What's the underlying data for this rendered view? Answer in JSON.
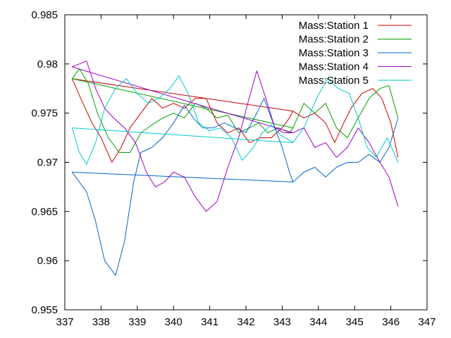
{
  "chart_data": {
    "type": "line",
    "title": "",
    "xlabel": "",
    "ylabel": "",
    "xlim": [
      337,
      347
    ],
    "ylim": [
      0.955,
      0.985
    ],
    "x_ticks": [
      "337",
      "338",
      "339",
      "340",
      "341",
      "342",
      "343",
      "344",
      "345",
      "346",
      "347"
    ],
    "y_ticks": [
      "0.955",
      "0.96",
      "0.965",
      "0.97",
      "0.975",
      "0.98",
      "0.985"
    ],
    "grid": false,
    "legend_position": "top-right",
    "series": [
      {
        "name": "Mass:Station 1",
        "color": "#cc0000",
        "points": [
          [
            337.2,
            0.9785
          ],
          [
            337.5,
            0.976
          ],
          [
            337.75,
            0.974
          ],
          [
            338.0,
            0.9725
          ],
          [
            338.3,
            0.97
          ],
          [
            338.55,
            0.9715
          ],
          [
            338.8,
            0.9735
          ],
          [
            339.1,
            0.975
          ],
          [
            339.4,
            0.9765
          ],
          [
            339.7,
            0.9755
          ],
          [
            340.0,
            0.976
          ],
          [
            340.3,
            0.9755
          ],
          [
            340.6,
            0.9765
          ],
          [
            340.9,
            0.9765
          ],
          [
            341.2,
            0.974
          ],
          [
            341.5,
            0.973
          ],
          [
            341.8,
            0.9735
          ],
          [
            342.1,
            0.972
          ],
          [
            342.4,
            0.9725
          ],
          [
            342.7,
            0.9725
          ],
          [
            343.0,
            0.9735
          ],
          [
            343.2,
            0.9745
          ],
          [
            343.3,
            0.9752
          ],
          [
            337.2,
            0.9785
          ],
          [
            343.3,
            0.9752
          ],
          [
            343.6,
            0.9745
          ],
          [
            343.9,
            0.975
          ],
          [
            344.2,
            0.974
          ],
          [
            344.45,
            0.972
          ],
          [
            344.7,
            0.974
          ],
          [
            344.9,
            0.9755
          ],
          [
            345.2,
            0.977
          ],
          [
            345.5,
            0.9775
          ],
          [
            345.75,
            0.9765
          ],
          [
            346.0,
            0.974
          ],
          [
            346.2,
            0.9705
          ]
        ]
      },
      {
        "name": "Mass:Station 2",
        "color": "#00a000",
        "points": [
          [
            337.2,
            0.9785
          ],
          [
            337.4,
            0.9795
          ],
          [
            337.65,
            0.978
          ],
          [
            337.9,
            0.975
          ],
          [
            338.2,
            0.9725
          ],
          [
            338.5,
            0.971
          ],
          [
            338.8,
            0.971
          ],
          [
            339.1,
            0.973
          ],
          [
            339.4,
            0.9738
          ],
          [
            339.7,
            0.9745
          ],
          [
            340.0,
            0.975
          ],
          [
            340.3,
            0.9745
          ],
          [
            340.6,
            0.976
          ],
          [
            340.9,
            0.9755
          ],
          [
            341.2,
            0.9745
          ],
          [
            341.5,
            0.9748
          ],
          [
            341.8,
            0.973
          ],
          [
            342.1,
            0.9735
          ],
          [
            342.35,
            0.974
          ],
          [
            342.6,
            0.973
          ],
          [
            342.9,
            0.9735
          ],
          [
            343.2,
            0.973
          ],
          [
            343.3,
            0.9735
          ],
          [
            337.2,
            0.9785
          ],
          [
            343.3,
            0.9735
          ],
          [
            343.6,
            0.976
          ],
          [
            343.9,
            0.975
          ],
          [
            344.2,
            0.976
          ],
          [
            344.5,
            0.9735
          ],
          [
            344.8,
            0.9725
          ],
          [
            345.1,
            0.9745
          ],
          [
            345.4,
            0.9765
          ],
          [
            345.7,
            0.9775
          ],
          [
            345.95,
            0.9778
          ],
          [
            346.2,
            0.9745
          ]
        ]
      },
      {
        "name": "Mass:Station 3",
        "color": "#0066cc",
        "points": [
          [
            337.2,
            0.969
          ],
          [
            337.4,
            0.968
          ],
          [
            337.6,
            0.967
          ],
          [
            337.85,
            0.964
          ],
          [
            338.1,
            0.96
          ],
          [
            338.4,
            0.9585
          ],
          [
            338.65,
            0.962
          ],
          [
            338.9,
            0.968
          ],
          [
            339.1,
            0.971
          ],
          [
            339.4,
            0.9715
          ],
          [
            339.7,
            0.9725
          ],
          [
            340.0,
            0.974
          ],
          [
            340.3,
            0.9758
          ],
          [
            340.55,
            0.9745
          ],
          [
            340.8,
            0.9735
          ],
          [
            341.1,
            0.9735
          ],
          [
            341.4,
            0.974
          ],
          [
            341.7,
            0.9735
          ],
          [
            342.0,
            0.973
          ],
          [
            342.3,
            0.975
          ],
          [
            342.5,
            0.9765
          ],
          [
            342.75,
            0.974
          ],
          [
            343.0,
            0.9715
          ],
          [
            343.2,
            0.969
          ],
          [
            343.3,
            0.968
          ],
          [
            337.2,
            0.969
          ],
          [
            343.3,
            0.968
          ],
          [
            343.6,
            0.969
          ],
          [
            343.9,
            0.9695
          ],
          [
            344.2,
            0.9685
          ],
          [
            344.5,
            0.9695
          ],
          [
            344.8,
            0.97
          ],
          [
            345.1,
            0.97
          ],
          [
            345.4,
            0.9708
          ],
          [
            345.7,
            0.97
          ],
          [
            345.95,
            0.9715
          ],
          [
            346.2,
            0.9745
          ]
        ]
      },
      {
        "name": "Mass:Station 4",
        "color": "#a000c8",
        "points": [
          [
            337.2,
            0.9797
          ],
          [
            337.4,
            0.98
          ],
          [
            337.6,
            0.9803
          ],
          [
            337.85,
            0.9775
          ],
          [
            338.1,
            0.9755
          ],
          [
            338.35,
            0.9745
          ],
          [
            338.65,
            0.9735
          ],
          [
            338.95,
            0.972
          ],
          [
            339.25,
            0.969
          ],
          [
            339.5,
            0.9675
          ],
          [
            339.75,
            0.968
          ],
          [
            340.0,
            0.969
          ],
          [
            340.3,
            0.9685
          ],
          [
            340.6,
            0.9665
          ],
          [
            340.9,
            0.965
          ],
          [
            341.2,
            0.966
          ],
          [
            341.5,
            0.9695
          ],
          [
            341.8,
            0.9725
          ],
          [
            342.05,
            0.976
          ],
          [
            342.3,
            0.9793
          ],
          [
            342.55,
            0.9765
          ],
          [
            342.8,
            0.9735
          ],
          [
            343.05,
            0.973
          ],
          [
            343.3,
            0.973
          ],
          [
            337.2,
            0.9797
          ],
          [
            343.3,
            0.973
          ],
          [
            343.6,
            0.9735
          ],
          [
            343.9,
            0.9715
          ],
          [
            344.2,
            0.972
          ],
          [
            344.5,
            0.9705
          ],
          [
            344.8,
            0.9715
          ],
          [
            345.1,
            0.9735
          ],
          [
            345.4,
            0.972
          ],
          [
            345.7,
            0.97
          ],
          [
            345.95,
            0.9685
          ],
          [
            346.2,
            0.9655
          ]
        ]
      },
      {
        "name": "Mass:Station 5",
        "color": "#00cccc",
        "points": [
          [
            337.2,
            0.9735
          ],
          [
            337.4,
            0.971
          ],
          [
            337.6,
            0.9698
          ],
          [
            337.85,
            0.972
          ],
          [
            338.1,
            0.9755
          ],
          [
            338.4,
            0.9775
          ],
          [
            338.7,
            0.9785
          ],
          [
            339.0,
            0.977
          ],
          [
            339.3,
            0.976
          ],
          [
            339.6,
            0.9765
          ],
          [
            339.9,
            0.9775
          ],
          [
            340.15,
            0.9788
          ],
          [
            340.4,
            0.977
          ],
          [
            340.7,
            0.974
          ],
          [
            341.0,
            0.9732
          ],
          [
            341.3,
            0.9735
          ],
          [
            341.6,
            0.9725
          ],
          [
            341.9,
            0.9702
          ],
          [
            342.2,
            0.9715
          ],
          [
            342.45,
            0.973
          ],
          [
            342.7,
            0.9738
          ],
          [
            342.95,
            0.9728
          ],
          [
            343.3,
            0.972
          ],
          [
            337.2,
            0.9735
          ],
          [
            343.3,
            0.972
          ],
          [
            343.6,
            0.9735
          ],
          [
            343.95,
            0.9765
          ],
          [
            344.25,
            0.9785
          ],
          [
            344.55,
            0.9775
          ],
          [
            344.85,
            0.977
          ],
          [
            345.1,
            0.9745
          ],
          [
            345.35,
            0.9715
          ],
          [
            345.6,
            0.9705
          ],
          [
            345.9,
            0.9725
          ],
          [
            346.2,
            0.97
          ]
        ]
      }
    ]
  }
}
